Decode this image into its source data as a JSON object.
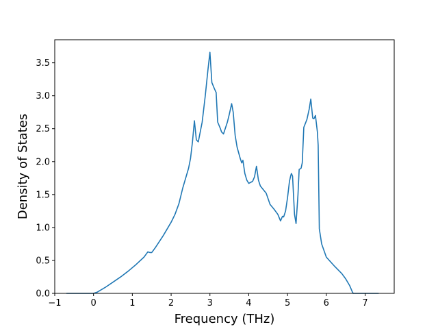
{
  "chart_data": {
    "type": "line",
    "xlabel": "Frequency (THz)",
    "ylabel": "Density of States",
    "xlim": [
      -1.0,
      7.75
    ],
    "ylim": [
      0.0,
      3.85
    ],
    "x_ticks": [
      -1,
      0,
      1,
      2,
      3,
      4,
      5,
      6,
      7
    ],
    "y_ticks": [
      0.0,
      0.5,
      1.0,
      1.5,
      2.0,
      2.5,
      3.0,
      3.5
    ],
    "x_tick_labels": [
      "−1",
      "0",
      "1",
      "2",
      "3",
      "4",
      "5",
      "6",
      "7"
    ],
    "y_tick_labels": [
      "0.0",
      "0.5",
      "1.0",
      "1.5",
      "2.0",
      "2.5",
      "3.0",
      "3.5"
    ],
    "grid": false,
    "legend": "none",
    "series": [
      {
        "color": "#1f77b4",
        "x": [
          -0.7,
          0.0,
          0.1,
          0.3,
          0.5,
          0.7,
          0.9,
          1.1,
          1.3,
          1.4,
          1.45,
          1.5,
          1.6,
          1.8,
          2.0,
          2.1,
          2.2,
          2.25,
          2.3,
          2.4,
          2.45,
          2.5,
          2.55,
          2.6,
          2.65,
          2.7,
          2.8,
          2.88,
          2.95,
          3.0,
          3.05,
          3.12,
          3.16,
          3.2,
          3.27,
          3.3,
          3.35,
          3.45,
          3.5,
          3.56,
          3.6,
          3.65,
          3.7,
          3.78,
          3.82,
          3.85,
          3.9,
          3.95,
          4.0,
          4.1,
          4.15,
          4.2,
          4.25,
          4.3,
          4.45,
          4.55,
          4.65,
          4.75,
          4.82,
          4.87,
          4.9,
          4.95,
          5.0,
          5.05,
          5.08,
          5.1,
          5.13,
          5.18,
          5.22,
          5.27,
          5.3,
          5.35,
          5.38,
          5.42,
          5.5,
          5.56,
          5.6,
          5.65,
          5.68,
          5.72,
          5.77,
          5.79,
          5.82,
          5.88,
          6.0,
          6.2,
          6.4,
          6.5,
          6.6,
          6.68,
          6.7,
          7.35
        ],
        "y": [
          0.0,
          0.0,
          0.02,
          0.09,
          0.17,
          0.25,
          0.34,
          0.44,
          0.55,
          0.63,
          0.62,
          0.62,
          0.7,
          0.88,
          1.08,
          1.2,
          1.36,
          1.48,
          1.6,
          1.8,
          1.9,
          2.05,
          2.3,
          2.62,
          2.33,
          2.3,
          2.6,
          3.0,
          3.4,
          3.66,
          3.2,
          3.1,
          3.05,
          2.6,
          2.5,
          2.45,
          2.42,
          2.6,
          2.72,
          2.88,
          2.75,
          2.4,
          2.22,
          2.05,
          1.98,
          2.02,
          1.82,
          1.72,
          1.67,
          1.7,
          1.77,
          1.93,
          1.72,
          1.63,
          1.52,
          1.35,
          1.28,
          1.2,
          1.1,
          1.17,
          1.16,
          1.25,
          1.45,
          1.7,
          1.78,
          1.82,
          1.78,
          1.2,
          1.06,
          1.5,
          1.88,
          1.9,
          1.98,
          2.52,
          2.64,
          2.8,
          2.95,
          2.66,
          2.65,
          2.7,
          2.45,
          2.25,
          0.98,
          0.75,
          0.55,
          0.42,
          0.3,
          0.22,
          0.12,
          0.01,
          0.0,
          0.0
        ]
      }
    ]
  }
}
